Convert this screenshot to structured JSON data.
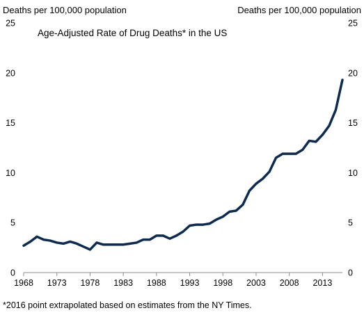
{
  "chart_data": {
    "type": "line",
    "title": "Age-Adjusted Rate of Drug Deaths* in the US",
    "ylabel_left": "Deaths per 100,000 population",
    "ylabel_right": "Deaths per 100,000 population",
    "footnote": "*2016 point extrapolated based on estimates from the NY Times.",
    "xlim": [
      1968,
      2016
    ],
    "ylim": [
      0,
      25
    ],
    "x_ticks": [
      1968,
      1973,
      1978,
      1983,
      1988,
      1993,
      1998,
      2003,
      2008,
      2013
    ],
    "x_tick_labels": [
      "1968",
      "1973",
      "1978",
      "1983",
      "1988",
      "1993",
      "1998",
      "2003",
      "2008",
      "2013"
    ],
    "y_ticks": [
      0,
      5,
      10,
      15,
      20,
      25
    ],
    "y_tick_labels": [
      "0",
      "5",
      "10",
      "15",
      "20",
      "25"
    ],
    "grid": false,
    "legend": "none",
    "series": [
      {
        "color": "#0d2b4e",
        "x": [
          1968,
          1969,
          1970,
          1971,
          1972,
          1973,
          1974,
          1975,
          1976,
          1977,
          1978,
          1979,
          1980,
          1981,
          1982,
          1983,
          1984,
          1985,
          1986,
          1987,
          1988,
          1989,
          1990,
          1991,
          1992,
          1993,
          1994,
          1995,
          1996,
          1997,
          1998,
          1999,
          2000,
          2001,
          2002,
          2003,
          2004,
          2005,
          2006,
          2007,
          2008,
          2009,
          2010,
          2011,
          2012,
          2013,
          2014,
          2015,
          2016
        ],
        "values": [
          2.7,
          3.1,
          3.6,
          3.3,
          3.2,
          3.0,
          2.9,
          3.1,
          2.9,
          2.6,
          2.3,
          3.0,
          2.8,
          2.8,
          2.8,
          2.8,
          2.9,
          3.0,
          3.3,
          3.3,
          3.7,
          3.7,
          3.4,
          3.7,
          4.1,
          4.7,
          4.8,
          4.8,
          4.9,
          5.3,
          5.6,
          6.1,
          6.2,
          6.8,
          8.2,
          8.9,
          9.4,
          10.1,
          11.5,
          11.9,
          11.9,
          11.9,
          12.3,
          13.2,
          13.1,
          13.8,
          14.7,
          16.3,
          19.3
        ]
      }
    ]
  }
}
